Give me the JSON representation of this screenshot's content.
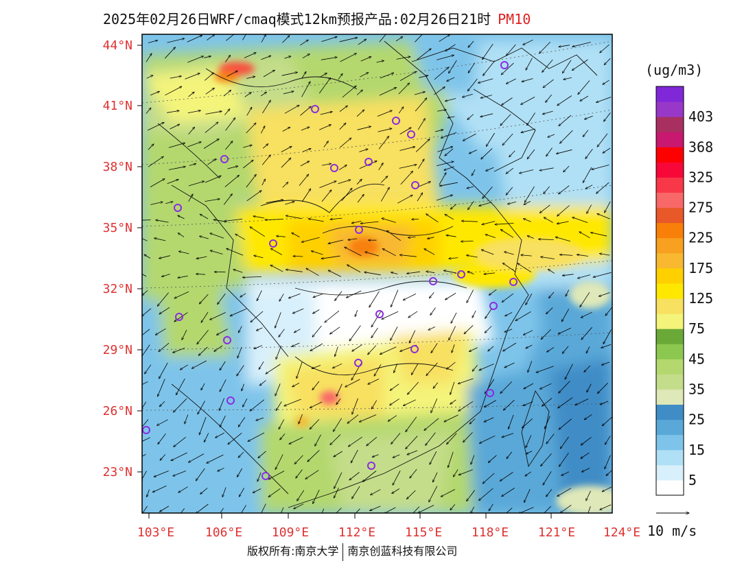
{
  "title": {
    "main": "2025年02月26日WRF/cmaq模式12km预报产品:02月26日21时",
    "variable": "PM10"
  },
  "colorbar": {
    "unit": "(ug/m3)",
    "colors": [
      "#ffffff",
      "#d8f0fb",
      "#b0e0f5",
      "#7ec4ea",
      "#5aa8d8",
      "#3f8cc6",
      "#dfe8b8",
      "#c4dd8a",
      "#b4d86e",
      "#8cc850",
      "#6aa838",
      "#f4f47a",
      "#f8e060",
      "#ffe800",
      "#ffd000",
      "#f8b830",
      "#f8a020",
      "#f88008",
      "#e85828",
      "#f86868",
      "#f83848",
      "#f80838",
      "#ff0000",
      "#c81870",
      "#a83060",
      "#9838c8",
      "#8028d8"
    ],
    "labels": [
      "5",
      "15",
      "25",
      "35",
      "45",
      "75",
      "125",
      "175",
      "225",
      "275",
      "325",
      "368",
      "403"
    ]
  },
  "axes": {
    "lat_labels": [
      "44°N",
      "41°N",
      "38°N",
      "35°N",
      "32°N",
      "29°N",
      "26°N",
      "23°N"
    ],
    "lon_labels": [
      "103°E",
      "106°E",
      "109°E",
      "112°E",
      "115°E",
      "118°E",
      "121°E",
      "124°E"
    ]
  },
  "wind_reference": "10 m/s",
  "copyright": {
    "left": "版权所有:南京大学",
    "right": "南京创蓝科技有限公司"
  },
  "legend_colors": {
    "station_marker": "#8a2be2",
    "label_red": "#e03030"
  }
}
